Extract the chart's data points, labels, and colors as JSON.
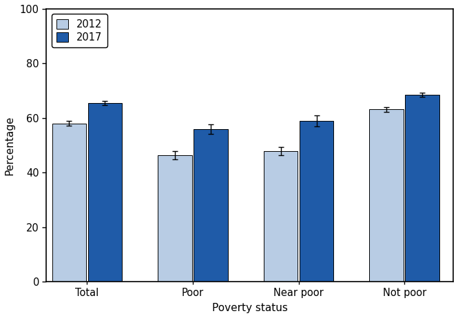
{
  "categories": [
    "Total",
    "Poor",
    "Near poor",
    "Not poor"
  ],
  "values_2012": [
    58.0,
    46.3,
    47.9,
    63.2
  ],
  "values_2017": [
    65.5,
    56.0,
    59.0,
    68.5
  ],
  "errors_2012": [
    0.9,
    1.5,
    1.5,
    0.9
  ],
  "errors_2017": [
    0.7,
    1.8,
    2.0,
    0.8
  ],
  "color_2012": "#b8cce4",
  "color_2017": "#1f5ba8",
  "xlabel": "Poverty status",
  "ylabel": "Percentage",
  "ylim": [
    0,
    100
  ],
  "yticks": [
    0,
    20,
    40,
    60,
    80,
    100
  ],
  "legend_labels": [
    "2012",
    "2017"
  ],
  "bar_width": 0.42,
  "bar_spacing": 0.02,
  "group_positions": [
    0.5,
    1.8,
    3.1,
    4.4
  ],
  "edgecolor": "black",
  "error_color": "black",
  "error_capsize": 3,
  "error_linewidth": 1.0,
  "xlim": [
    0.0,
    5.0
  ],
  "fig_bg": "#ffffff",
  "ax_bg": "#ffffff"
}
